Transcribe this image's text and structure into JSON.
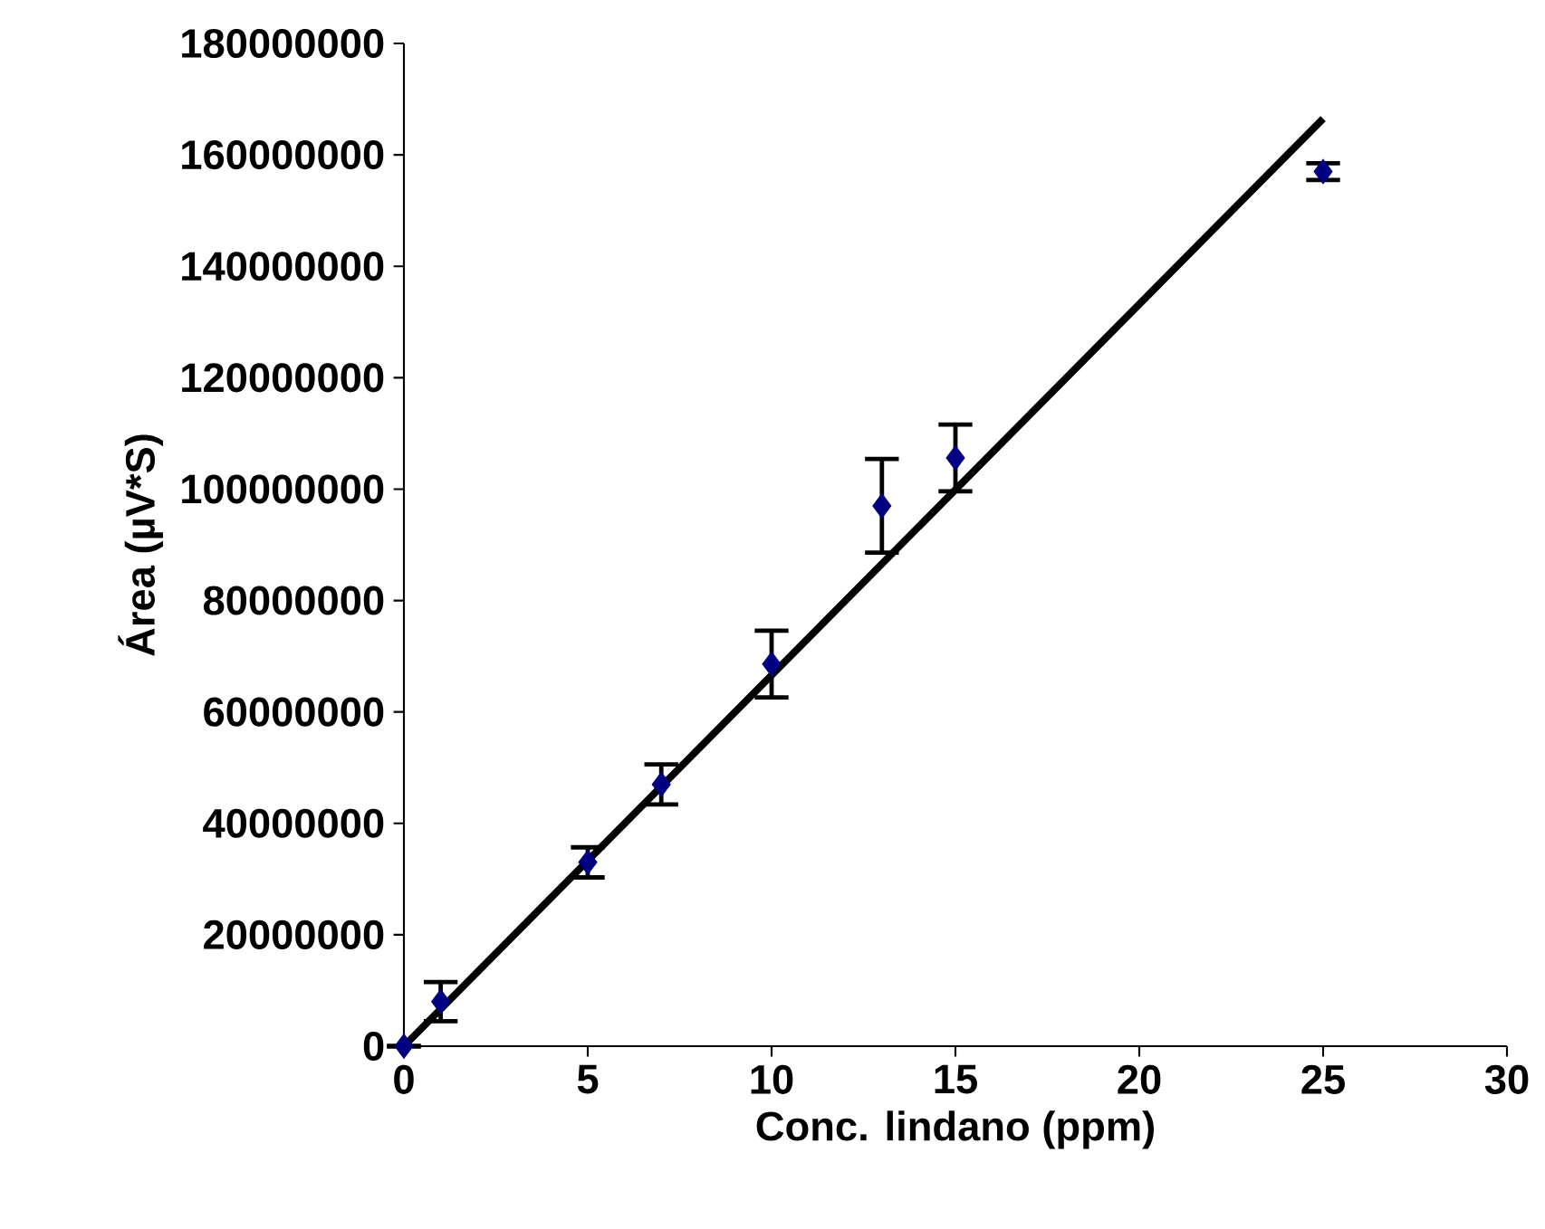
{
  "chart_data": {
    "type": "scatter",
    "xlabel": "Conc. lindano (ppm)",
    "ylabel": "Área (µV*S)",
    "xlim": [
      0,
      30
    ],
    "xticks": [
      0,
      5,
      10,
      15,
      20,
      25,
      30
    ],
    "ylim": [
      0,
      180000000
    ],
    "yticks": [
      0,
      20000000,
      40000000,
      60000000,
      80000000,
      100000000,
      120000000,
      140000000,
      160000000,
      180000000
    ],
    "grid": false,
    "series": [
      {
        "color": "#000080",
        "marker": "diamond",
        "x": [
          0,
          1,
          5,
          7,
          10,
          13,
          15,
          25
        ],
        "values": [
          0,
          8000000,
          33000000,
          47000000,
          68600000,
          97000000,
          105600000,
          157000000
        ],
        "errors": [
          null,
          3500000,
          2700000,
          3600000,
          6000000,
          8400000,
          6000000,
          1500000
        ]
      },
      {
        "type": "line",
        "color": "#000000",
        "marker": "none",
        "line_style": "solid",
        "x": [
          0,
          25
        ],
        "values": [
          0,
          166500000
        ]
      }
    ]
  }
}
